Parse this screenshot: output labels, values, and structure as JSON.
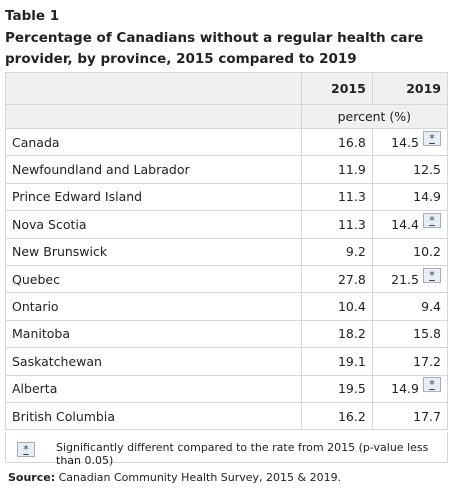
{
  "header": {
    "label": "Table 1",
    "title": "Percentage of Canadians without a regular health care provider, by province, 2015 compared to 2019"
  },
  "table": {
    "columns": [
      "2015",
      "2019"
    ],
    "unit": "percent (%)",
    "rows": [
      {
        "name": "Canada",
        "values": [
          16.8,
          14.5
        ],
        "note": "*"
      },
      {
        "name": "Newfoundland and Labrador",
        "values": [
          11.9,
          12.5
        ]
      },
      {
        "name": "Prince Edward Island",
        "values": [
          11.3,
          14.9
        ]
      },
      {
        "name": "Nova Scotia",
        "values": [
          11.3,
          14.4
        ],
        "note": "*"
      },
      {
        "name": "New Brunswick",
        "values": [
          9.2,
          10.2
        ]
      },
      {
        "name": "Quebec",
        "values": [
          27.8,
          21.5
        ],
        "note": "*"
      },
      {
        "name": "Ontario",
        "values": [
          10.4,
          9.4
        ]
      },
      {
        "name": "Manitoba",
        "values": [
          18.2,
          15.8
        ]
      },
      {
        "name": "Saskatchewan",
        "values": [
          19.1,
          17.2
        ]
      },
      {
        "name": "Alberta",
        "values": [
          19.5,
          14.9
        ],
        "note": "*"
      },
      {
        "name": "British Columbia",
        "values": [
          16.2,
          17.7
        ]
      }
    ]
  },
  "footnote": {
    "symbol": "*",
    "text": "Significantly different compared to the rate from 2015 (p-value less than 0.05)"
  },
  "source": {
    "label": "Source:",
    "text": "Canadian Community Health Survey, 2015 & 2019."
  }
}
